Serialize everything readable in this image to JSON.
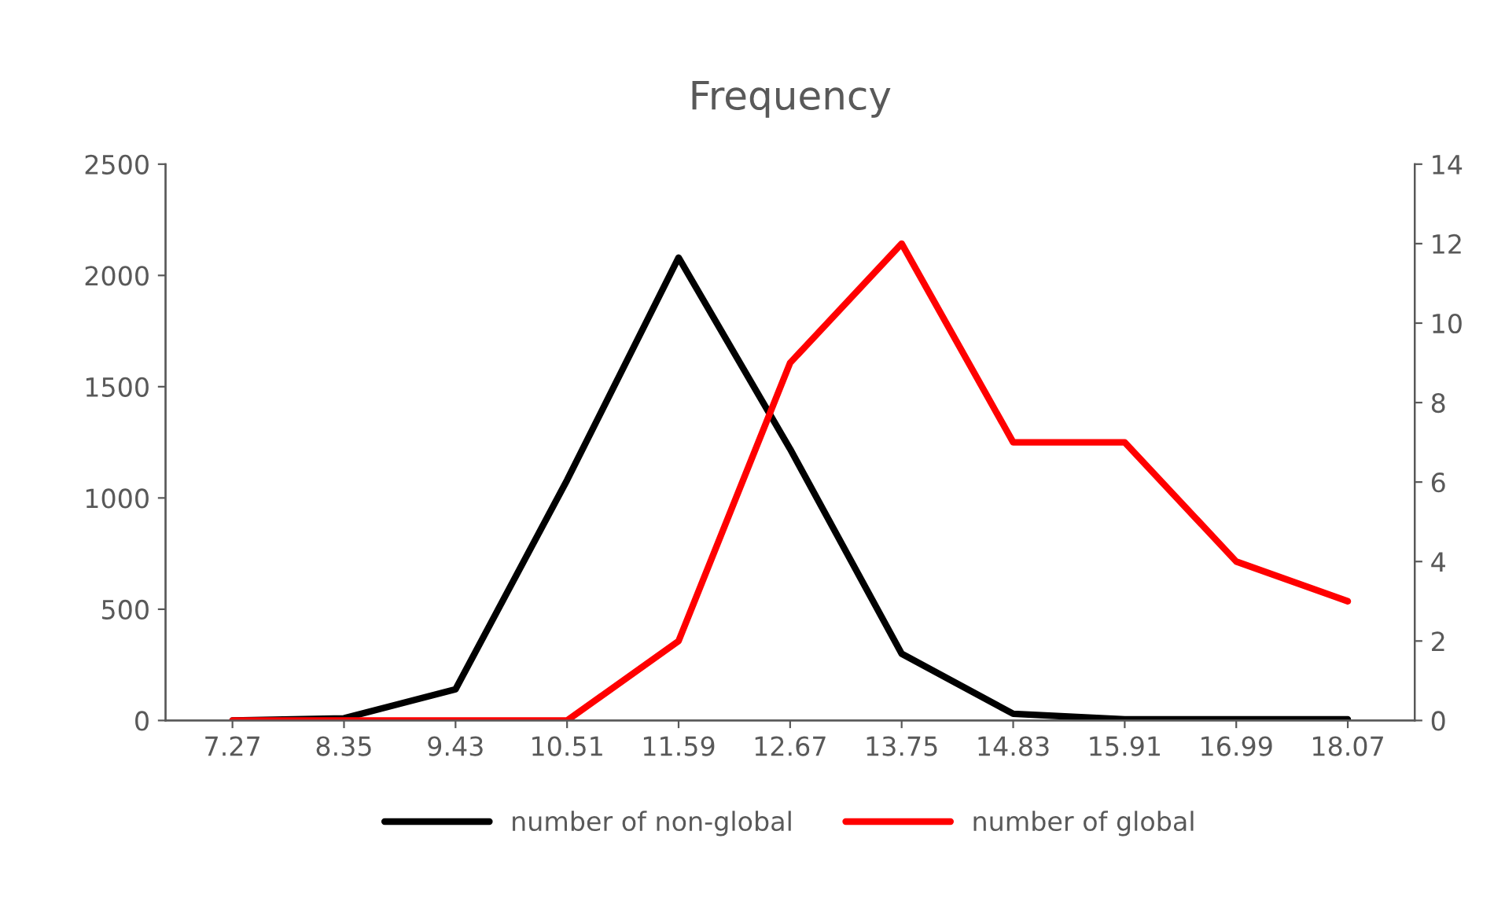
{
  "chart_data": {
    "type": "line",
    "title": "Frequency",
    "categories": [
      "7.27",
      "8.35",
      "9.43",
      "10.51",
      "11.59",
      "12.67",
      "13.75",
      "14.83",
      "15.91",
      "16.99",
      "18.07"
    ],
    "series": [
      {
        "name": "number of non-global",
        "color": "#000000",
        "values": [
          0,
          10,
          140,
          1080,
          2080,
          1220,
          300,
          30,
          5,
          5,
          5
        ]
      },
      {
        "name": "number of global",
        "color": "#ff0000",
        "axis": "y2",
        "values": [
          0,
          0,
          0,
          0,
          2,
          9,
          12,
          7,
          7,
          4,
          3
        ]
      }
    ],
    "ylim": [
      0,
      2500
    ],
    "yticks": [
      0,
      500,
      1000,
      1500,
      2000,
      2500
    ],
    "y2lim": [
      0,
      14
    ],
    "y2ticks": [
      0,
      2,
      4,
      6,
      8,
      10,
      12,
      14
    ],
    "legend": "bottom",
    "grid": false,
    "marker": "none",
    "line_style": "solid"
  }
}
